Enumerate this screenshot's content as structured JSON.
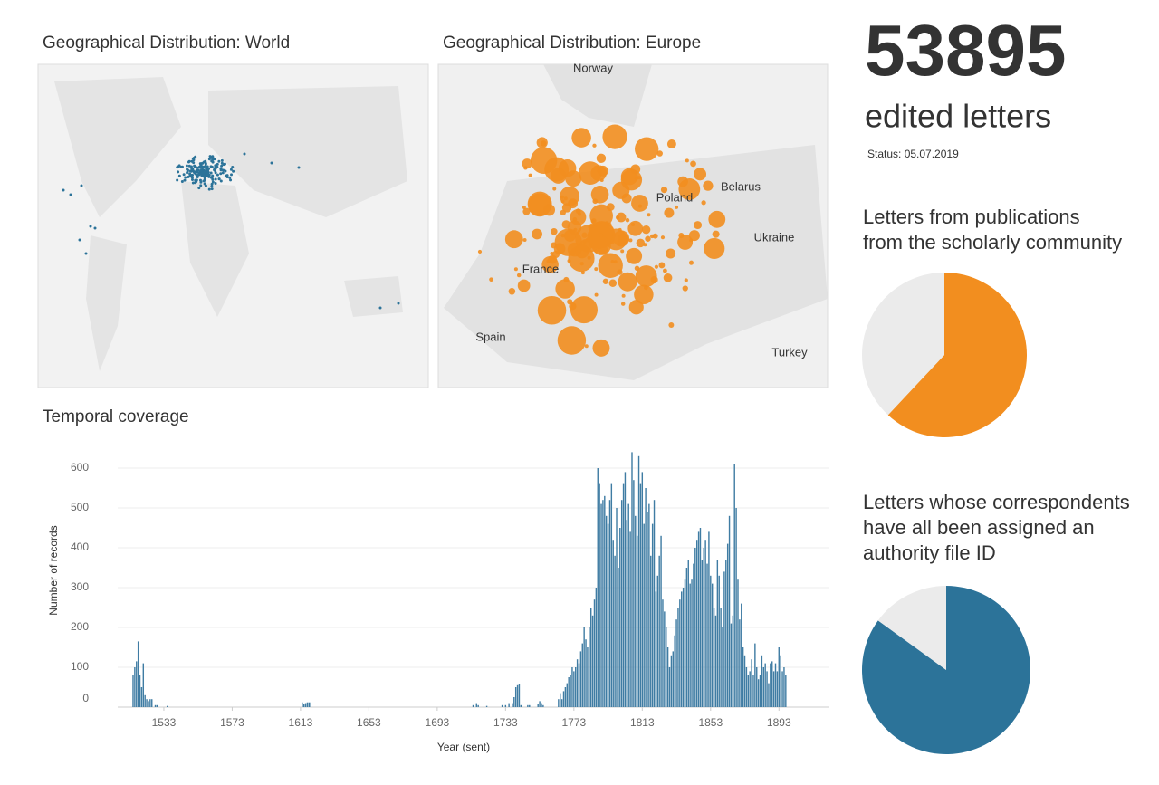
{
  "world_map": {
    "title": "Geographical Distribution: World"
  },
  "europe_map": {
    "title": "Geographical Distribution: Europe",
    "labels": [
      "Norway",
      "Poland",
      "Belarus",
      "Ukraine",
      "France",
      "Spain",
      "Turkey"
    ]
  },
  "kpi": {
    "value": 53895,
    "label": "edited letters",
    "status": "Status: 05.07.2019"
  },
  "chart_data": [
    {
      "type": "bar",
      "title": "Temporal coverage",
      "x_label": "Year (sent)",
      "y_label": "Number of records",
      "color": "#3f7ca3",
      "grid": true,
      "xlim": [
        1506,
        1922
      ],
      "xticks": [
        1533,
        1573,
        1613,
        1653,
        1693,
        1733,
        1773,
        1813,
        1853,
        1893
      ],
      "ylim": [
        0,
        650
      ],
      "yticks": [
        0,
        100,
        200,
        300,
        400,
        500,
        600
      ],
      "x": [
        1515,
        1516,
        1517,
        1518,
        1519,
        1520,
        1521,
        1522,
        1523,
        1524,
        1525,
        1526,
        1528,
        1529,
        1535,
        1614,
        1615,
        1616,
        1617,
        1618,
        1619,
        1714,
        1716,
        1717,
        1722,
        1731,
        1733,
        1735,
        1737,
        1738,
        1739,
        1740,
        1741,
        1742,
        1746,
        1747,
        1752,
        1753,
        1754,
        1755,
        1764,
        1765,
        1766,
        1767,
        1768,
        1769,
        1770,
        1771,
        1772,
        1773,
        1774,
        1775,
        1776,
        1777,
        1778,
        1779,
        1780,
        1781,
        1782,
        1783,
        1784,
        1785,
        1786,
        1787,
        1788,
        1789,
        1790,
        1791,
        1792,
        1793,
        1794,
        1795,
        1796,
        1797,
        1798,
        1799,
        1800,
        1801,
        1802,
        1803,
        1804,
        1805,
        1806,
        1807,
        1808,
        1809,
        1810,
        1811,
        1812,
        1813,
        1814,
        1815,
        1816,
        1817,
        1818,
        1819,
        1820,
        1821,
        1822,
        1823,
        1824,
        1825,
        1826,
        1827,
        1828,
        1829,
        1830,
        1831,
        1832,
        1833,
        1834,
        1835,
        1836,
        1837,
        1838,
        1839,
        1840,
        1841,
        1842,
        1843,
        1844,
        1845,
        1846,
        1847,
        1848,
        1849,
        1850,
        1851,
        1852,
        1853,
        1854,
        1855,
        1856,
        1857,
        1858,
        1859,
        1860,
        1861,
        1862,
        1863,
        1864,
        1865,
        1866,
        1867,
        1868,
        1869,
        1870,
        1871,
        1872,
        1873,
        1874,
        1875,
        1876,
        1877,
        1878,
        1879,
        1880,
        1881,
        1882,
        1883,
        1884,
        1885,
        1886,
        1887,
        1888,
        1889,
        1890,
        1891,
        1892,
        1893,
        1894,
        1895,
        1896,
        1897
      ],
      "values": [
        80,
        100,
        115,
        165,
        80,
        50,
        110,
        30,
        20,
        15,
        20,
        20,
        5,
        5,
        3,
        12,
        8,
        10,
        12,
        12,
        12,
        5,
        10,
        5,
        3,
        5,
        5,
        10,
        10,
        25,
        50,
        55,
        58,
        5,
        5,
        5,
        8,
        15,
        10,
        5,
        20,
        35,
        20,
        40,
        50,
        60,
        75,
        80,
        100,
        90,
        100,
        120,
        110,
        140,
        160,
        200,
        170,
        150,
        200,
        250,
        230,
        270,
        300,
        600,
        560,
        510,
        520,
        530,
        480,
        460,
        520,
        560,
        420,
        380,
        500,
        350,
        450,
        520,
        560,
        590,
        470,
        510,
        440,
        640,
        570,
        480,
        430,
        630,
        560,
        590,
        460,
        550,
        490,
        510,
        380,
        460,
        520,
        290,
        330,
        380,
        430,
        270,
        240,
        200,
        150,
        100,
        130,
        140,
        180,
        220,
        250,
        270,
        290,
        300,
        320,
        350,
        370,
        310,
        320,
        360,
        400,
        420,
        440,
        450,
        370,
        400,
        420,
        360,
        440,
        330,
        310,
        250,
        230,
        370,
        330,
        250,
        200,
        340,
        370,
        410,
        480,
        210,
        230,
        610,
        500,
        320,
        220,
        260,
        150,
        130,
        100,
        80,
        90,
        120,
        80,
        160,
        100,
        70,
        80,
        130,
        100,
        110,
        90,
        60,
        110,
        115,
        90,
        110,
        90,
        150,
        130,
        90,
        100,
        80
      ]
    },
    {
      "type": "pie",
      "title": [
        "Letters from publications",
        "from the scholarly community"
      ],
      "values": [
        62,
        38
      ],
      "colors": [
        "#f28e1f",
        "#ebebeb"
      ]
    },
    {
      "type": "pie",
      "title": [
        "Letters whose correspondents",
        "have all been assigned an",
        "authority file ID"
      ],
      "values": [
        85,
        15
      ],
      "colors": [
        "#2c7399",
        "#ebebeb"
      ]
    }
  ]
}
